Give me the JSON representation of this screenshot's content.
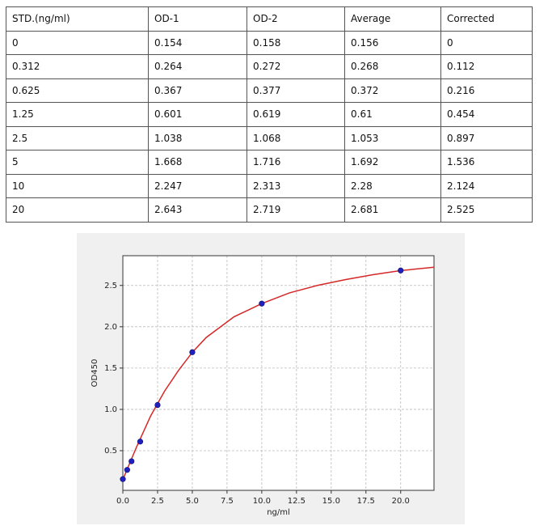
{
  "table": {
    "header": [
      "STD.(ng/ml)",
      "OD-1",
      "OD-2",
      "Average",
      "Corrected"
    ],
    "rows": [
      [
        "0",
        "0.154",
        "0.158",
        "0.156",
        "0"
      ],
      [
        "0.312",
        "0.264",
        "0.272",
        "0.268",
        "0.112"
      ],
      [
        "0.625",
        "0.367",
        "0.377",
        "0.372",
        "0.216"
      ],
      [
        "1.25",
        "0.601",
        "0.619",
        "0.61",
        "0.454"
      ],
      [
        "2.5",
        "1.038",
        "1.068",
        "1.053",
        "0.897"
      ],
      [
        "5",
        "1.668",
        "1.716",
        "1.692",
        "1.536"
      ],
      [
        "10",
        "2.247",
        "2.313",
        "2.28",
        "2.124"
      ],
      [
        "20",
        "2.643",
        "2.719",
        "2.681",
        "2.525"
      ]
    ]
  },
  "chart_data": {
    "type": "scatter",
    "x_label": "ng/ml",
    "y_label": "OD450",
    "xlim": [
      0,
      22.4
    ],
    "ylim": [
      0.02,
      2.86
    ],
    "xticks": [
      {
        "value": 0,
        "label": "0.0"
      },
      2.5,
      {
        "value": 5,
        "label": "5.0"
      },
      7.5,
      {
        "value": 10,
        "label": "10.0"
      },
      12.5,
      {
        "value": 15,
        "label": "15.0"
      },
      17.5,
      {
        "value": 20,
        "label": "20.0"
      }
    ],
    "yticks": [
      0.5,
      {
        "value": 1,
        "label": "1.0"
      },
      1.5,
      {
        "value": 2,
        "label": "2.0"
      },
      2.5
    ],
    "grid": true,
    "series": [
      {
        "type": "line",
        "color": "#d62728",
        "x": [
          0,
          1,
          2,
          3,
          4,
          5,
          6,
          8,
          10,
          12,
          14,
          16,
          18,
          20,
          22.4
        ],
        "values": [
          0.15,
          0.55,
          0.92,
          1.22,
          1.47,
          1.69,
          1.87,
          2.12,
          2.28,
          2.41,
          2.5,
          2.57,
          2.63,
          2.68,
          2.72
        ]
      },
      {
        "type": "scatter",
        "color": "#2020c0",
        "x": [
          0,
          0.312,
          0.625,
          1.25,
          2.5,
          5,
          10,
          20
        ],
        "values": [
          0.156,
          0.268,
          0.372,
          0.61,
          1.053,
          1.692,
          2.28,
          2.681
        ]
      }
    ]
  }
}
